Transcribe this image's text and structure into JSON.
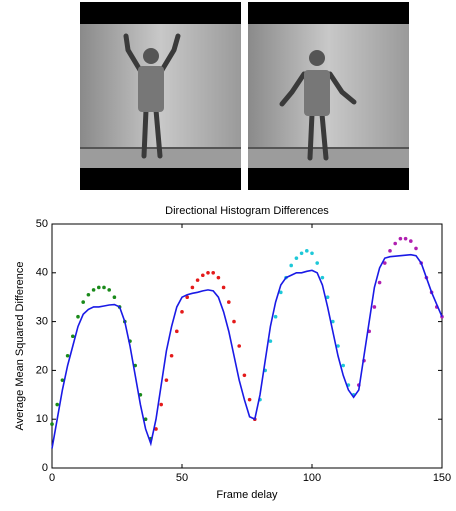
{
  "chart_data": {
    "type": "scatter-line",
    "title": "Directional Histogram Differences",
    "x_label": "Frame delay",
    "y_label": "Average Mean Squared Difference",
    "xlim": [
      0,
      150
    ],
    "ylim": [
      0,
      50
    ],
    "xticks": [
      0,
      50,
      100,
      150
    ],
    "yticks": [
      0,
      10,
      20,
      30,
      40,
      50
    ],
    "series": [
      {
        "color": "#1a8a1a",
        "style": "dots",
        "x": [
          0,
          2,
          4,
          6,
          8,
          10,
          12,
          14,
          16,
          18,
          20,
          22,
          24,
          26,
          28,
          30,
          32,
          34,
          36,
          38
        ],
        "values": [
          9,
          13,
          18,
          23,
          27,
          31,
          34,
          35.5,
          36.5,
          37,
          37,
          36.5,
          35,
          33,
          30,
          26,
          21,
          15,
          10,
          6
        ]
      },
      {
        "color": "#e41a1a",
        "style": "dots",
        "x": [
          40,
          42,
          44,
          46,
          48,
          50,
          52,
          54,
          56,
          58,
          60,
          62,
          64,
          66,
          68,
          70,
          72,
          74,
          76,
          78
        ],
        "values": [
          8,
          13,
          18,
          23,
          28,
          32,
          35,
          37,
          38.5,
          39.5,
          40,
          40,
          39,
          37,
          34,
          30,
          25,
          19,
          14,
          10
        ]
      },
      {
        "color": "#1ec8d8",
        "style": "dots",
        "x": [
          80,
          82,
          84,
          86,
          88,
          90,
          92,
          94,
          96,
          98,
          100,
          102,
          104,
          106,
          108,
          110,
          112,
          114,
          116
        ],
        "values": [
          14,
          20,
          26,
          31,
          36,
          39,
          41.5,
          43,
          44,
          44.5,
          44,
          42,
          39,
          35,
          30,
          25,
          21,
          17,
          15
        ]
      },
      {
        "color": "#b020b0",
        "style": "dots",
        "x": [
          118,
          120,
          122,
          124,
          126,
          128,
          130,
          132,
          134,
          136,
          138,
          140,
          142,
          144,
          146,
          148,
          150
        ],
        "values": [
          17,
          22,
          28,
          33,
          38,
          42,
          44.5,
          46,
          47,
          47,
          46.5,
          45,
          42,
          39,
          36,
          33,
          31
        ]
      },
      {
        "color": "#1a1ae6",
        "style": "line",
        "x": [
          0,
          2,
          4,
          6,
          8,
          10,
          12,
          14,
          16,
          18,
          20,
          22,
          24,
          26,
          28,
          30,
          32,
          34,
          36,
          38,
          40,
          42,
          44,
          46,
          48,
          50,
          52,
          54,
          56,
          58,
          60,
          62,
          64,
          66,
          68,
          70,
          72,
          74,
          76,
          78,
          80,
          82,
          84,
          86,
          88,
          90,
          92,
          94,
          96,
          98,
          100,
          102,
          104,
          106,
          108,
          110,
          112,
          114,
          116,
          118,
          120,
          122,
          124,
          126,
          128,
          130,
          132,
          134,
          136,
          138,
          140,
          142,
          144,
          146,
          148,
          150
        ],
        "values": [
          4,
          10,
          16,
          21,
          25,
          29,
          31.5,
          32.5,
          33,
          33,
          33.2,
          33.4,
          33.5,
          33,
          30,
          25,
          19,
          13,
          8,
          5,
          10,
          17,
          24,
          29,
          33,
          35,
          35.5,
          35.8,
          36,
          36.3,
          36.5,
          36.3,
          35,
          32,
          28,
          23,
          18,
          14,
          10.5,
          10,
          15,
          22,
          29,
          34,
          37.5,
          39,
          39.5,
          40,
          40,
          40.3,
          40.5,
          40,
          37.5,
          33,
          28,
          23,
          19,
          16,
          14.5,
          16,
          23,
          30,
          37,
          41,
          43,
          43.3,
          43.4,
          43.5,
          43.6,
          43.7,
          43.5,
          42,
          39,
          36,
          33.5,
          31
        ]
      }
    ]
  }
}
